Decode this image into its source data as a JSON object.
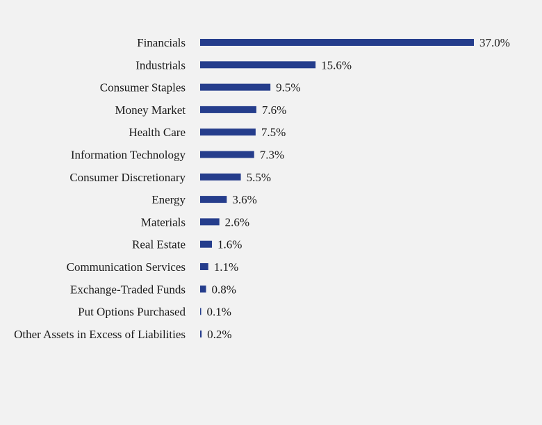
{
  "chart_data": {
    "type": "bar",
    "orientation": "horizontal",
    "title": "",
    "xlabel": "",
    "ylabel": "",
    "bar_color": "#253d8c",
    "grid": false,
    "xlim": [
      0,
      37.0
    ],
    "categories": [
      "Financials",
      "Industrials",
      "Consumer Staples",
      "Money Market",
      "Health Care",
      "Information Technology",
      "Consumer Discretionary",
      "Energy",
      "Materials",
      "Real Estate",
      "Communication Services",
      "Exchange-Traded Funds",
      "Put Options Purchased",
      "Other Assets in Excess of Liabilities"
    ],
    "values": [
      37.0,
      15.6,
      9.5,
      7.6,
      7.5,
      7.3,
      5.5,
      3.6,
      2.6,
      1.6,
      1.1,
      0.8,
      0.1,
      0.2
    ],
    "value_labels": [
      "37.0%",
      "15.6%",
      "9.5%",
      "7.6%",
      "7.5%",
      "7.3%",
      "5.5%",
      "3.6%",
      "2.6%",
      "1.6%",
      "1.1%",
      "0.8%",
      "0.1%",
      "0.2%"
    ]
  }
}
